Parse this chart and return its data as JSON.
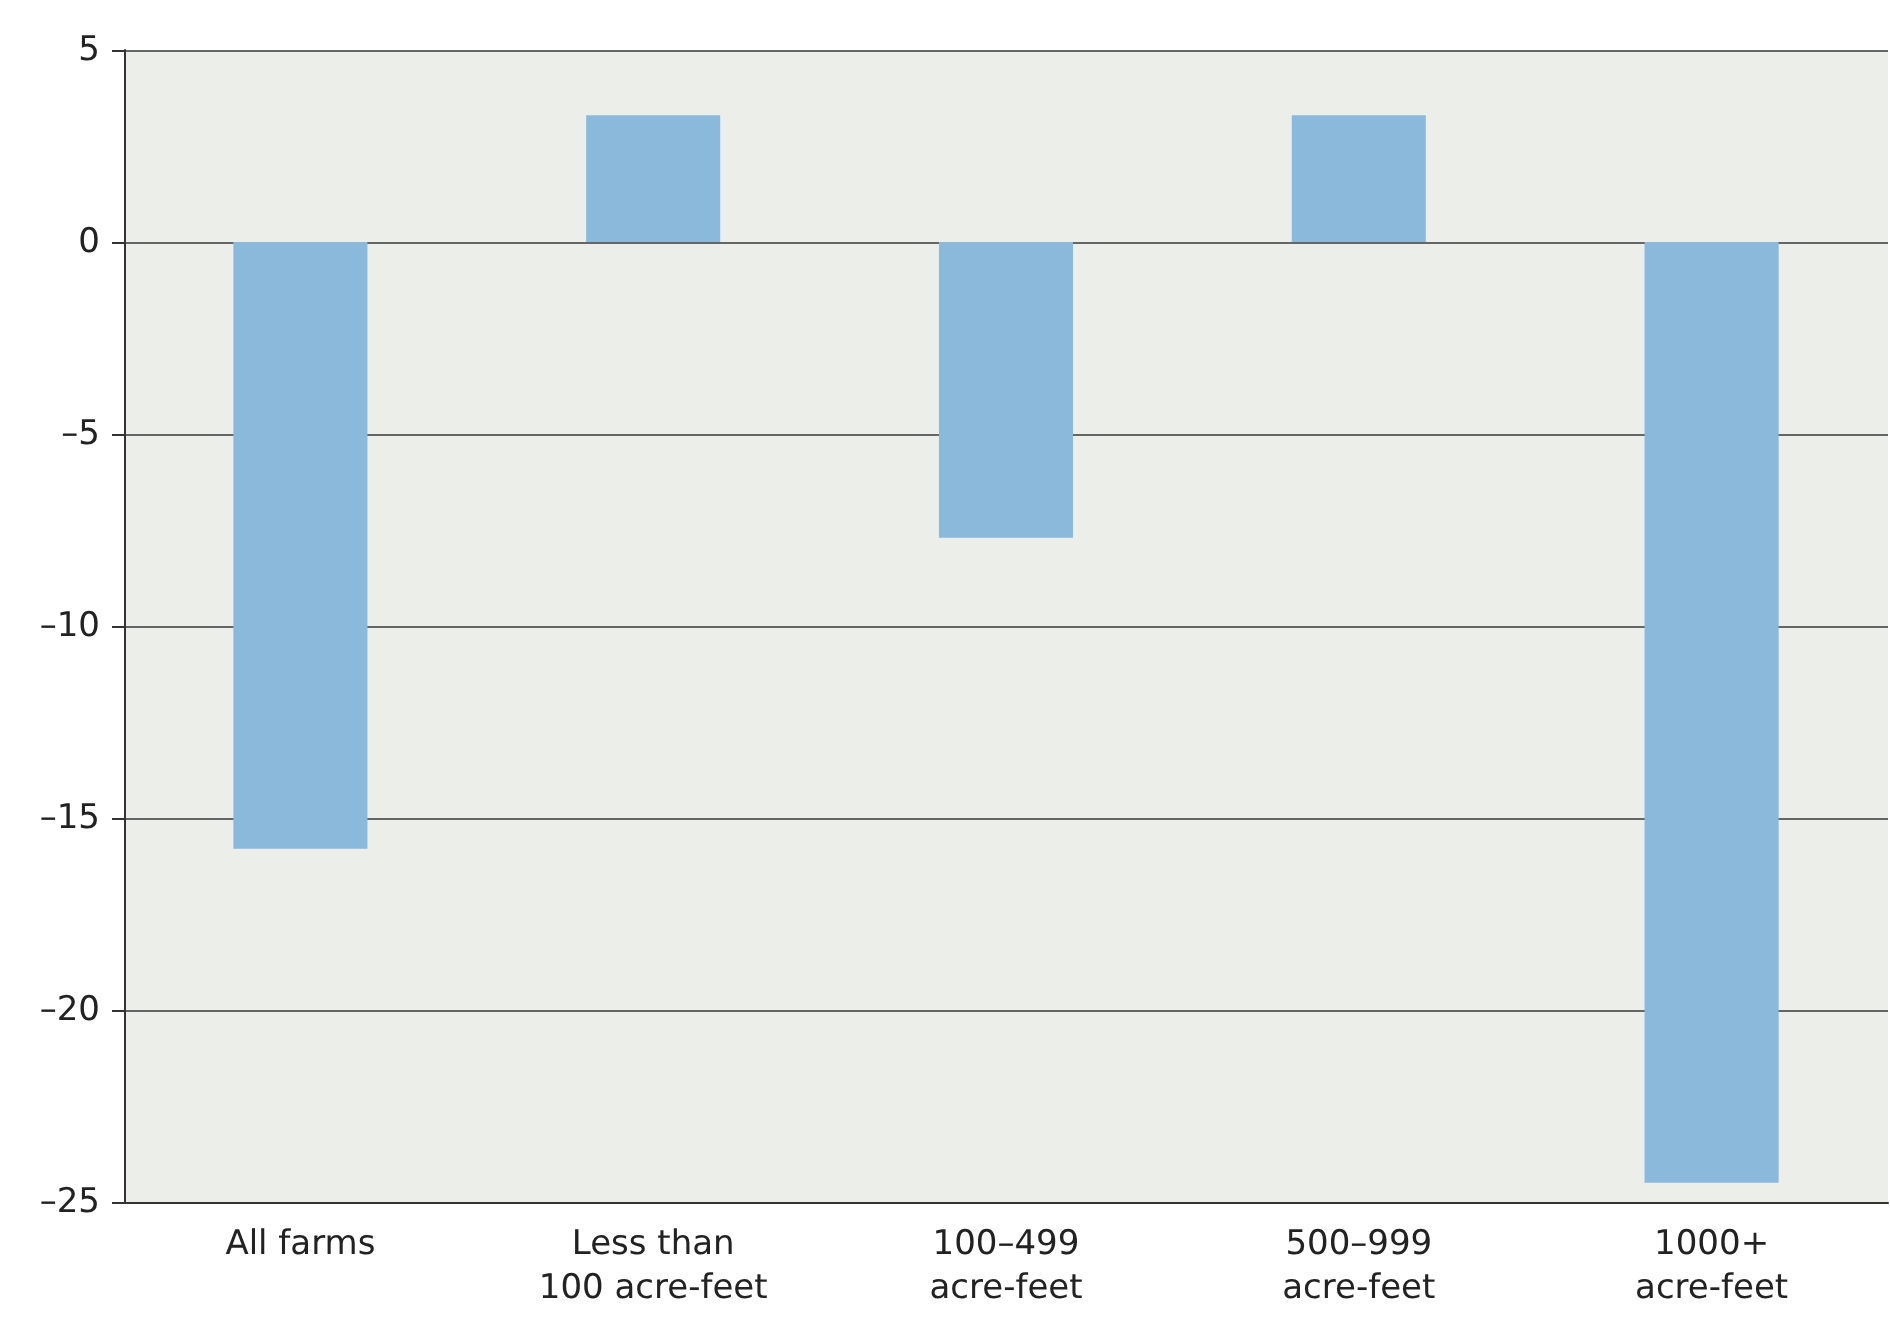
{
  "chart_data": {
    "type": "bar",
    "categories": [
      "All farms",
      "Less than\n100 acre-feet",
      "100–499\nacre-feet",
      "500–999\nacre-feet",
      "1000+\nacre-feet"
    ],
    "values": [
      -15.8,
      3.3,
      -7.7,
      3.3,
      -24.5
    ],
    "color": "#8ab9dc",
    "ylim": [
      -25,
      5
    ],
    "yticks": [
      {
        "value": -25,
        "label": "–25"
      },
      {
        "value": -20,
        "label": "–20"
      },
      {
        "value": -15,
        "label": "–15"
      },
      {
        "value": -10,
        "label": "–10"
      },
      {
        "value": -5,
        "label": "–5"
      },
      0,
      5
    ],
    "grid": "y"
  }
}
